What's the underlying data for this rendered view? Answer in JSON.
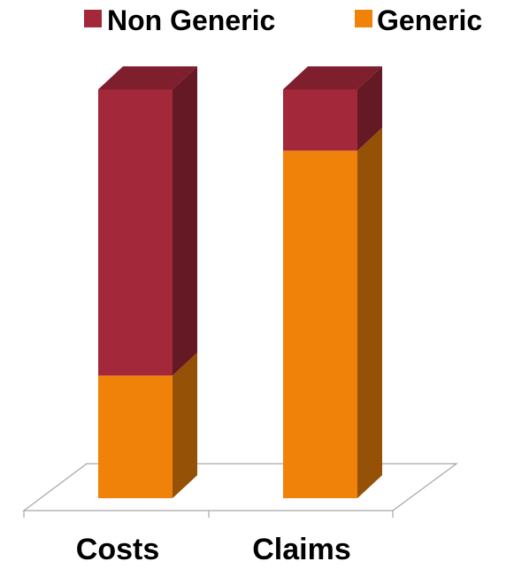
{
  "chart_data": {
    "type": "bar",
    "stacked": true,
    "three_d": true,
    "categories": [
      "Costs",
      "Claims"
    ],
    "series": [
      {
        "name": "Generic",
        "values": [
          30,
          85
        ],
        "color": "#F0820A"
      },
      {
        "name": "Non Generic",
        "values": [
          70,
          15
        ],
        "color": "#A3283A"
      }
    ],
    "ylim": [
      0,
      100
    ],
    "legend": {
      "position": "top",
      "order": [
        "Non Generic",
        "Generic"
      ]
    },
    "grid": false,
    "xlabel": "",
    "ylabel": ""
  }
}
